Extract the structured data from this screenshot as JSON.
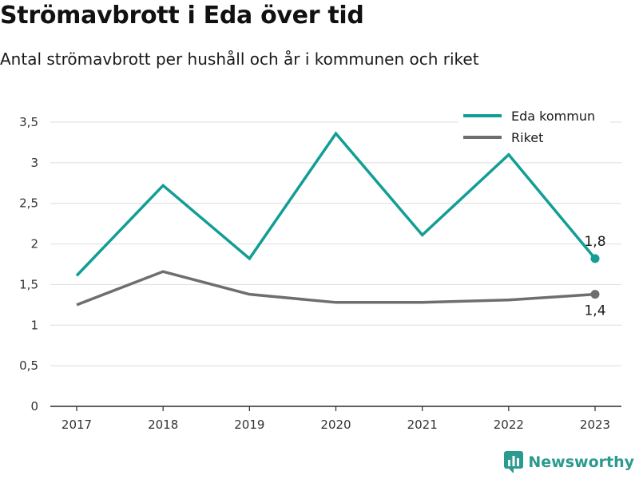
{
  "header": {
    "title": "Strömavbrott i Eda över tid",
    "subtitle": "Antal strömavbrott per hushåll och år i kommunen och riket"
  },
  "brand": {
    "name": "Newsworthy",
    "icon": "newsworthy-logo-icon",
    "color": "#2b9a8f"
  },
  "chart_data": {
    "type": "line",
    "title": "Strömavbrott i Eda över tid",
    "subtitle": "Antal strömavbrott per hushåll och år i kommunen och riket",
    "x": [
      "2017",
      "2018",
      "2019",
      "2020",
      "2021",
      "2022",
      "2023"
    ],
    "series": [
      {
        "name": "Eda kommun",
        "color": "#129e95",
        "values": [
          1.61,
          2.72,
          1.82,
          3.36,
          2.11,
          3.1,
          1.82
        ],
        "end_label": "1,8"
      },
      {
        "name": "Riket",
        "color": "#6e6e6e",
        "values": [
          1.25,
          1.66,
          1.38,
          1.28,
          1.28,
          1.31,
          1.38
        ],
        "end_label": "1,4"
      }
    ],
    "yticks": [
      0,
      0.5,
      1,
      1.5,
      2,
      2.5,
      3,
      3.5
    ],
    "ytick_labels": [
      "0",
      "0,5",
      "1",
      "1,5",
      "2",
      "2,5",
      "3",
      "3,5"
    ],
    "ylim": [
      0,
      3.5
    ],
    "xlabel": "",
    "ylabel": "",
    "grid": true,
    "legend": "top-right"
  }
}
